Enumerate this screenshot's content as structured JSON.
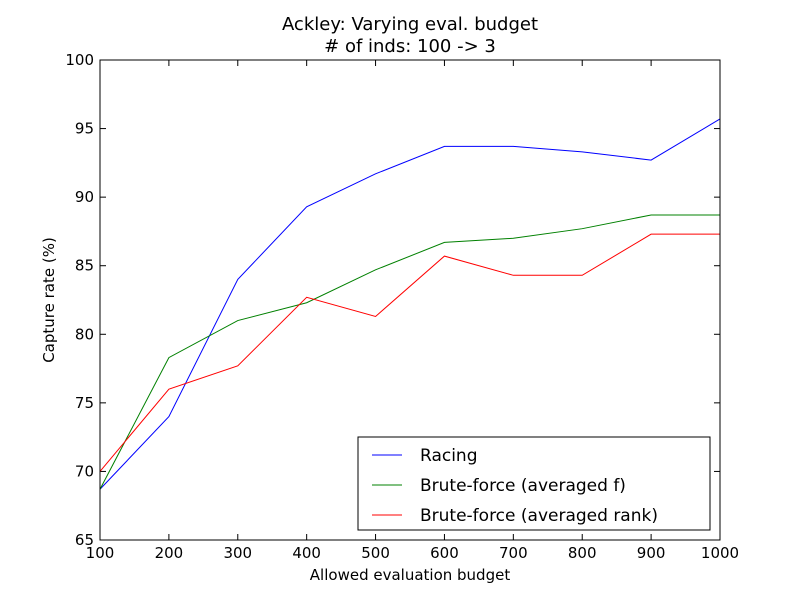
{
  "chart_data": {
    "type": "line",
    "title": "Ackley: Varying eval. budget",
    "subtitle": "# of inds: 100 -> 3",
    "xlabel": "Allowed evaluation budget",
    "ylabel": "Capture rate (%)",
    "xlim": [
      100,
      1000
    ],
    "ylim": [
      65,
      100
    ],
    "xticks": [
      100,
      200,
      300,
      400,
      500,
      600,
      700,
      800,
      900,
      1000
    ],
    "yticks": [
      65,
      70,
      75,
      80,
      85,
      90,
      95,
      100
    ],
    "grid": false,
    "legend_position": "bottom-right",
    "x": [
      100,
      200,
      300,
      400,
      500,
      600,
      700,
      800,
      900,
      1000
    ],
    "series": [
      {
        "name": "Racing",
        "color": "#0000ff",
        "values": [
          68.7,
          74.0,
          84.0,
          89.3,
          91.7,
          93.7,
          93.7,
          93.3,
          92.7,
          95.7
        ]
      },
      {
        "name": "Brute-force (averaged f)",
        "color": "#008000",
        "values": [
          68.7,
          78.3,
          81.0,
          82.3,
          84.7,
          86.7,
          87.0,
          87.7,
          88.7,
          88.7
        ]
      },
      {
        "name": "Brute-force (averaged rank)",
        "color": "#ff0000",
        "values": [
          70.0,
          76.0,
          77.7,
          82.7,
          81.3,
          85.7,
          84.3,
          84.3,
          87.3,
          87.3
        ]
      }
    ]
  }
}
